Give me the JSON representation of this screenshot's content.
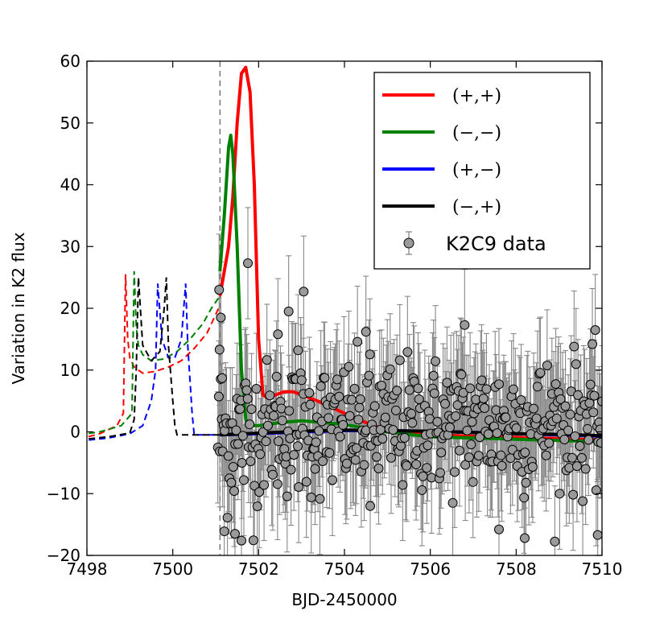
{
  "chart_data": {
    "type": "line",
    "title": "",
    "xlabel": "BJD-2450000",
    "ylabel": "Variation in K2 flux",
    "xlim": [
      7498,
      7510
    ],
    "ylim": [
      -20,
      60
    ],
    "xticks": [
      7498,
      7500,
      7502,
      7504,
      7506,
      7508,
      7510
    ],
    "xtick_labels": [
      "7498",
      "7500",
      "7502",
      "7504",
      "7506",
      "7508",
      "7510"
    ],
    "yticks": [
      -20,
      -10,
      0,
      10,
      20,
      30,
      40,
      50,
      60
    ],
    "ytick_labels": [
      "−20",
      "−10",
      "0",
      "10",
      "20",
      "30",
      "40",
      "50",
      "60"
    ],
    "vline_x": 7501.1,
    "legend": {
      "location": "top-right",
      "entries": [
        {
          "label": "(+,+)",
          "color": "#ff0000",
          "kind": "line"
        },
        {
          "label": "(−,−)",
          "color": "#008000",
          "kind": "line"
        },
        {
          "label": "(+,−)",
          "color": "#0000ff",
          "kind": "line"
        },
        {
          "label": "(−,+)",
          "color": "#000000",
          "kind": "line"
        },
        {
          "label": "K2C9 data",
          "color": "#888888",
          "kind": "errorbar"
        }
      ]
    },
    "series": [
      {
        "name": "(+,+)",
        "color": "#ff0000",
        "dashed": {
          "x": [
            7497.8,
            7498.3,
            7498.7,
            7498.85,
            7498.9,
            7498.95,
            7499.0,
            7499.1,
            7499.3,
            7499.6,
            7499.9,
            7500.2,
            7500.5,
            7500.8,
            7501.0,
            7501.1
          ],
          "y": [
            -1.2,
            -0.3,
            1,
            3,
            25.5,
            15,
            12,
            10.5,
            9.5,
            9.8,
            10.5,
            11.5,
            13.5,
            16,
            19,
            20.5
          ]
        },
        "solid": {
          "x": [
            7501.1,
            7501.2,
            7501.3,
            7501.4,
            7501.5,
            7501.6,
            7501.7,
            7501.8,
            7501.9,
            7502.0,
            7502.1,
            7502.2,
            7502.4,
            7502.6,
            7502.8,
            7503.0,
            7503.3,
            7503.6,
            7504.0,
            7504.5,
            7505.0,
            7505.5,
            7506.0,
            7507.0,
            7508.0,
            7509.0,
            7510.0
          ],
          "y": [
            22,
            26,
            30,
            38,
            50,
            58,
            59,
            55,
            40,
            15,
            6,
            5.5,
            6,
            6.5,
            6.5,
            6,
            5.2,
            4.3,
            3,
            1.5,
            0.2,
            -0.3,
            -0.5,
            -0.7,
            -0.9,
            -1.1,
            -1.3
          ]
        }
      },
      {
        "name": "(−,−)",
        "color": "#008000",
        "dashed": {
          "x": [
            7497.8,
            7498.3,
            7498.8,
            7499.05,
            7499.1,
            7499.15,
            7499.2,
            7499.3,
            7499.5,
            7499.8,
            7500.1,
            7500.4,
            7500.7,
            7500.9,
            7501.1
          ],
          "y": [
            -0.5,
            0,
            1,
            3,
            26,
            17,
            14,
            12.5,
            11.5,
            11.8,
            13,
            15,
            17.5,
            20,
            22
          ]
        },
        "solid": {
          "x": [
            7501.1,
            7501.2,
            7501.3,
            7501.35,
            7501.4,
            7501.5,
            7501.6,
            7501.7,
            7501.8,
            7502.0,
            7502.5,
            7503.0,
            7504.0,
            7505.0,
            7506.0,
            7507.0,
            7508.0,
            7509.0,
            7510.0
          ],
          "y": [
            26,
            35,
            46,
            48,
            45,
            30,
            10,
            2,
            1,
            1,
            1.5,
            1.8,
            1.2,
            0,
            -0.8,
            -1,
            -1.2,
            -1.4,
            -1.6
          ]
        }
      },
      {
        "name": "(+,−)",
        "color": "#0000ff",
        "dashed": {
          "x": [
            7497.8,
            7498.5,
            7499.0,
            7499.3,
            7499.5,
            7499.6,
            7499.65,
            7499.75,
            7499.9,
            7500.05,
            7500.2,
            7500.3,
            7500.35,
            7500.45,
            7500.5,
            7500.8,
            7501.1
          ],
          "y": [
            -1.5,
            -1.0,
            -0.3,
            1,
            5,
            10,
            24,
            15,
            12,
            12,
            15,
            24,
            14,
            3,
            -0.5,
            -0.5,
            -0.5
          ]
        },
        "solid": {
          "x": [
            7501.1,
            7502.0,
            7503.0,
            7504.0,
            7505.0,
            7506.0,
            7507.0,
            7508.0,
            7509.0,
            7510.0
          ],
          "y": [
            -0.5,
            -0.3,
            0,
            0.2,
            0.2,
            0.1,
            -0.1,
            -0.3,
            -0.5,
            -0.7
          ]
        }
      },
      {
        "name": "(−,+)",
        "color": "#000000",
        "dashed": {
          "x": [
            7497.8,
            7498.5,
            7499.0,
            7499.1,
            7499.15,
            7499.2,
            7499.3,
            7499.5,
            7499.7,
            7499.8,
            7499.85,
            7499.9,
            7500.0,
            7500.05,
            7500.1,
            7500.5,
            7501.1
          ],
          "y": [
            -1.3,
            -0.8,
            -0.2,
            2,
            10,
            25,
            14,
            11.5,
            13,
            20,
            25,
            14,
            5,
            1,
            -0.5,
            -0.5,
            -0.5
          ]
        },
        "solid": {
          "x": [
            7501.1,
            7502.0,
            7503.0,
            7504.0,
            7505.0,
            7506.0,
            7507.0,
            7508.0,
            7509.0,
            7510.0
          ],
          "y": [
            -0.5,
            -0.2,
            0.1,
            0.3,
            0.2,
            0.1,
            -0.1,
            -0.3,
            -0.4,
            -0.6
          ]
        }
      }
    ],
    "k2c9_data": {
      "x_start": 7501.05,
      "x_end": 7510.0,
      "n_points": 400,
      "error_bar": 9,
      "color": "#888888",
      "highlight_points": [
        {
          "x": 7501.08,
          "y": 23
        },
        {
          "x": 7501.12,
          "y": 18.5
        },
        {
          "x": 7501.09,
          "y": 13.3
        },
        {
          "x": 7501.15,
          "y": 8.7
        },
        {
          "x": 7501.75,
          "y": 27.3
        },
        {
          "x": 7502.7,
          "y": 19.5
        },
        {
          "x": 7502.45,
          "y": 15.8
        },
        {
          "x": 7503.05,
          "y": 22.7
        },
        {
          "x": 7502.92,
          "y": 13.2
        },
        {
          "x": 7504.5,
          "y": 16.2
        },
        {
          "x": 7506.8,
          "y": 17.3
        },
        {
          "x": 7501.45,
          "y": -16.5
        },
        {
          "x": 7501.6,
          "y": -17.6
        },
        {
          "x": 7501.2,
          "y": -16.1
        },
        {
          "x": 7508.2,
          "y": -17.2
        },
        {
          "x": 7509.9,
          "y": -16.7
        },
        {
          "x": 7507.6,
          "y": -15.8
        },
        {
          "x": 7504.6,
          "y": -12
        }
      ]
    }
  }
}
